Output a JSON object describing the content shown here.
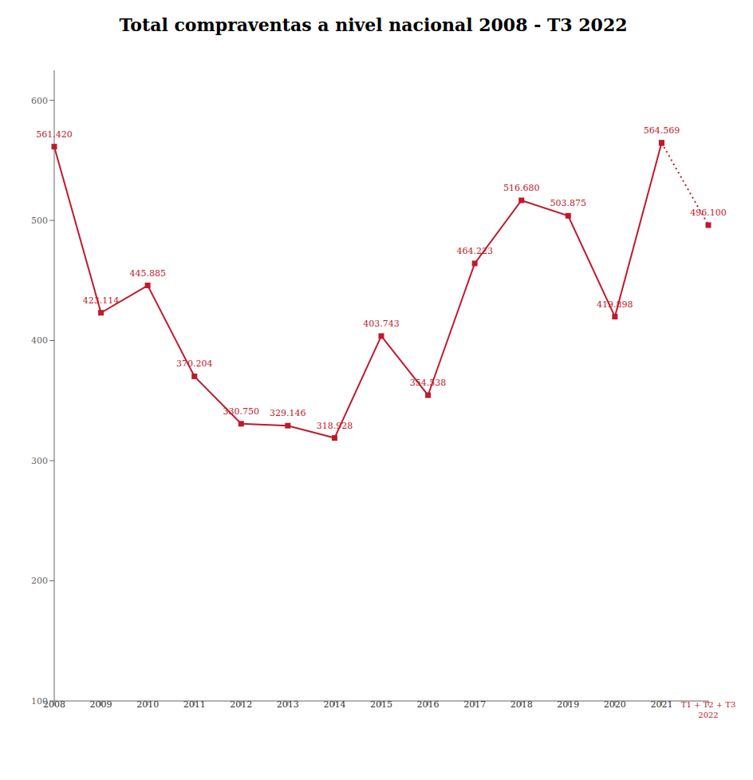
{
  "chart_data": {
    "type": "line",
    "title": "Total compraventas a nivel nacional 2008 - T3 2022",
    "categories": [
      "2008",
      "2009",
      "2010",
      "2011",
      "2012",
      "2013",
      "2014",
      "2015",
      "2016",
      "2017",
      "2018",
      "2019",
      "2020",
      "2021",
      "T1 + T2 + T3\n2022"
    ],
    "series": [
      {
        "color": "#c0192c",
        "marker": "square",
        "line_style": "solid",
        "values": [
          561.42,
          423.114,
          445.885,
          370.204,
          330.75,
          329.146,
          318.928,
          403.743,
          354.538,
          464.223,
          516.68,
          503.875,
          419.898,
          564.569,
          null
        ],
        "value_labels": [
          "561.420",
          "423.114",
          "445.885",
          "370.204",
          "330.750",
          "329.146",
          "318.928",
          "403.743",
          "354.538",
          "464.223",
          "516.680",
          "503.875",
          "419.898",
          "564.569",
          null
        ]
      },
      {
        "color": "#c0192c",
        "marker": "square",
        "line_style": "dotted",
        "values": [
          null,
          null,
          null,
          null,
          null,
          null,
          null,
          null,
          null,
          null,
          null,
          null,
          null,
          564.569,
          496.1
        ],
        "value_labels": [
          null,
          null,
          null,
          null,
          null,
          null,
          null,
          null,
          null,
          null,
          null,
          null,
          null,
          null,
          "496.100"
        ]
      }
    ],
    "ylim": [
      100,
      625
    ],
    "yticks": [
      100,
      200,
      300,
      400,
      500,
      600
    ],
    "grid": false,
    "data_labels": true
  }
}
